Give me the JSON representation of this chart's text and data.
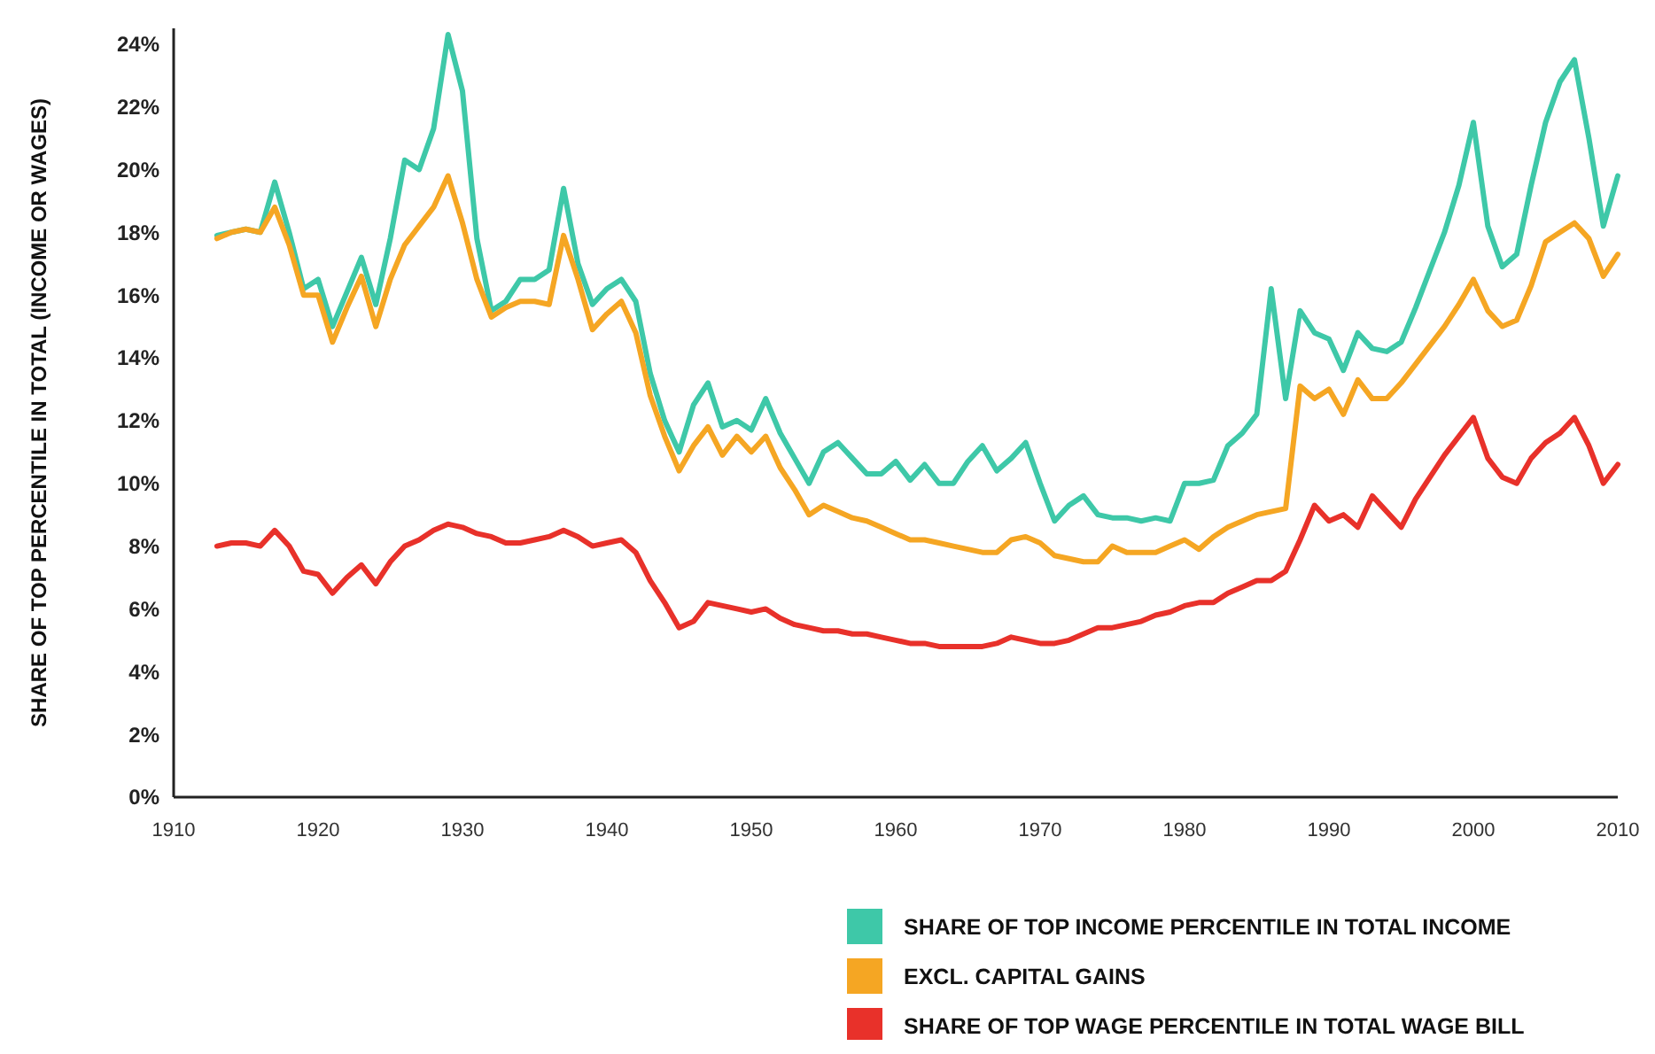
{
  "chart_data": {
    "type": "line",
    "ylabel": "SHARE OF TOP PERCENTILE IN TOTAL (INCOME OR WAGES)",
    "x": [
      1913,
      1914,
      1915,
      1916,
      1917,
      1918,
      1919,
      1920,
      1921,
      1922,
      1923,
      1924,
      1925,
      1926,
      1927,
      1928,
      1929,
      1930,
      1931,
      1932,
      1933,
      1934,
      1935,
      1936,
      1937,
      1938,
      1939,
      1940,
      1941,
      1942,
      1943,
      1944,
      1945,
      1946,
      1947,
      1948,
      1949,
      1950,
      1951,
      1952,
      1953,
      1954,
      1955,
      1956,
      1957,
      1958,
      1959,
      1960,
      1961,
      1962,
      1963,
      1964,
      1965,
      1966,
      1967,
      1968,
      1969,
      1970,
      1971,
      1972,
      1973,
      1974,
      1975,
      1976,
      1977,
      1978,
      1979,
      1980,
      1981,
      1982,
      1983,
      1984,
      1985,
      1986,
      1987,
      1988,
      1989,
      1990,
      1991,
      1992,
      1993,
      1994,
      1995,
      1996,
      1997,
      1998,
      1999,
      2000,
      2001,
      2002,
      2003,
      2004,
      2005,
      2006,
      2007,
      2008,
      2009,
      2010
    ],
    "series": [
      {
        "name": "SHARE OF TOP INCOME PERCENTILE IN TOTAL INCOME",
        "color": "#3ec8a8",
        "values": [
          17.9,
          18.0,
          18.1,
          18.0,
          19.6,
          18.0,
          16.2,
          16.5,
          15.0,
          16.1,
          17.2,
          15.7,
          17.8,
          20.3,
          20.0,
          21.3,
          24.3,
          22.5,
          17.8,
          15.5,
          15.8,
          16.5,
          16.5,
          16.8,
          19.4,
          17.0,
          15.7,
          16.2,
          16.5,
          15.8,
          13.5,
          12.0,
          11.0,
          12.5,
          13.2,
          11.8,
          12.0,
          11.7,
          12.7,
          11.6,
          10.8,
          10.0,
          11.0,
          11.3,
          10.8,
          10.3,
          10.3,
          10.7,
          10.1,
          10.6,
          10.0,
          10.0,
          10.7,
          11.2,
          10.4,
          10.8,
          11.3,
          10.0,
          8.8,
          9.3,
          9.6,
          9.0,
          8.9,
          8.9,
          8.8,
          8.9,
          8.8,
          10.0,
          10.0,
          10.1,
          11.2,
          11.6,
          12.2,
          16.2,
          12.7,
          15.5,
          14.8,
          14.6,
          13.6,
          14.8,
          14.3,
          14.2,
          14.5,
          15.6,
          16.8,
          18.0,
          19.5,
          21.5,
          18.2,
          16.9,
          17.3,
          19.5,
          21.5,
          22.8,
          23.5,
          21.0,
          18.2,
          19.8
        ]
      },
      {
        "name": "EXCL. CAPITAL GAINS",
        "color": "#f5a623",
        "values": [
          17.8,
          18.0,
          18.1,
          18.0,
          18.8,
          17.6,
          16.0,
          16.0,
          14.5,
          15.6,
          16.6,
          15.0,
          16.5,
          17.6,
          18.2,
          18.8,
          19.8,
          18.3,
          16.5,
          15.3,
          15.6,
          15.8,
          15.8,
          15.7,
          17.9,
          16.5,
          14.9,
          15.4,
          15.8,
          14.8,
          12.8,
          11.5,
          10.4,
          11.2,
          11.8,
          10.9,
          11.5,
          11.0,
          11.5,
          10.5,
          9.8,
          9.0,
          9.3,
          9.1,
          8.9,
          8.8,
          8.6,
          8.4,
          8.2,
          8.2,
          8.1,
          8.0,
          7.9,
          7.8,
          7.8,
          8.2,
          8.3,
          8.1,
          7.7,
          7.6,
          7.5,
          7.5,
          8.0,
          7.8,
          7.8,
          7.8,
          8.0,
          8.2,
          7.9,
          8.3,
          8.6,
          8.8,
          9.0,
          9.1,
          9.2,
          13.1,
          12.7,
          13.0,
          12.2,
          13.3,
          12.7,
          12.7,
          13.2,
          13.8,
          14.4,
          15.0,
          15.7,
          16.5,
          15.5,
          15.0,
          15.2,
          16.3,
          17.7,
          18.0,
          18.3,
          17.8,
          16.6,
          17.3
        ]
      },
      {
        "name": "SHARE OF TOP WAGE PERCENTILE IN TOTAL WAGE BILL",
        "color": "#e8312a",
        "values": [
          8.0,
          8.1,
          8.1,
          8.0,
          8.5,
          8.0,
          7.2,
          7.1,
          6.5,
          7.0,
          7.4,
          6.8,
          7.5,
          8.0,
          8.2,
          8.5,
          8.7,
          8.6,
          8.4,
          8.3,
          8.1,
          8.1,
          8.2,
          8.3,
          8.5,
          8.3,
          8.0,
          8.1,
          8.2,
          7.8,
          6.9,
          6.2,
          5.4,
          5.6,
          6.2,
          6.1,
          6.0,
          5.9,
          6.0,
          5.7,
          5.5,
          5.4,
          5.3,
          5.3,
          5.2,
          5.2,
          5.1,
          5.0,
          4.9,
          4.9,
          4.8,
          4.8,
          4.8,
          4.8,
          4.9,
          5.1,
          5.0,
          4.9,
          4.9,
          5.0,
          5.2,
          5.4,
          5.4,
          5.5,
          5.6,
          5.8,
          5.9,
          6.1,
          6.2,
          6.2,
          6.5,
          6.7,
          6.9,
          6.9,
          7.2,
          8.2,
          9.3,
          8.8,
          9.0,
          8.6,
          9.6,
          9.1,
          8.6,
          9.5,
          10.2,
          10.9,
          11.5,
          12.1,
          10.8,
          10.2,
          10.0,
          10.8,
          11.3,
          11.6,
          12.1,
          11.2,
          10.0,
          10.6
        ]
      }
    ],
    "xlim": [
      1910,
      2010
    ],
    "xticks": [
      1910,
      1920,
      1930,
      1940,
      1950,
      1960,
      1970,
      1980,
      1990,
      2000,
      2010
    ],
    "ylim": [
      0,
      24.5
    ],
    "yticks": [
      {
        "value": 0,
        "label": "0%"
      },
      {
        "value": 2,
        "label": "2%"
      },
      {
        "value": 4,
        "label": "4%"
      },
      {
        "value": 6,
        "label": "6%"
      },
      {
        "value": 8,
        "label": "8%"
      },
      {
        "value": 10,
        "label": "10%"
      },
      {
        "value": 12,
        "label": "12%"
      },
      {
        "value": 14,
        "label": "14%"
      },
      {
        "value": 16,
        "label": "16%"
      },
      {
        "value": 18,
        "label": "18%"
      },
      {
        "value": 20,
        "label": "20%"
      },
      {
        "value": 22,
        "label": "22%"
      },
      {
        "value": 24,
        "label": "24%"
      }
    ],
    "grid": false,
    "legend": "bottom right",
    "marker": "none",
    "line_style": "solid"
  }
}
